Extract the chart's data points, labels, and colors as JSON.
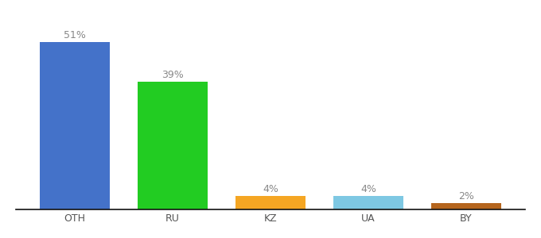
{
  "categories": [
    "OTH",
    "RU",
    "KZ",
    "UA",
    "BY"
  ],
  "values": [
    51,
    39,
    4,
    4,
    2
  ],
  "labels": [
    "51%",
    "39%",
    "4%",
    "4%",
    "2%"
  ],
  "bar_colors": [
    "#4472c9",
    "#22cc22",
    "#f5a623",
    "#7ec8e3",
    "#b5651d"
  ],
  "ylim": [
    0,
    58
  ],
  "background_color": "#ffffff",
  "label_fontsize": 9,
  "tick_fontsize": 9,
  "bar_width": 0.72
}
